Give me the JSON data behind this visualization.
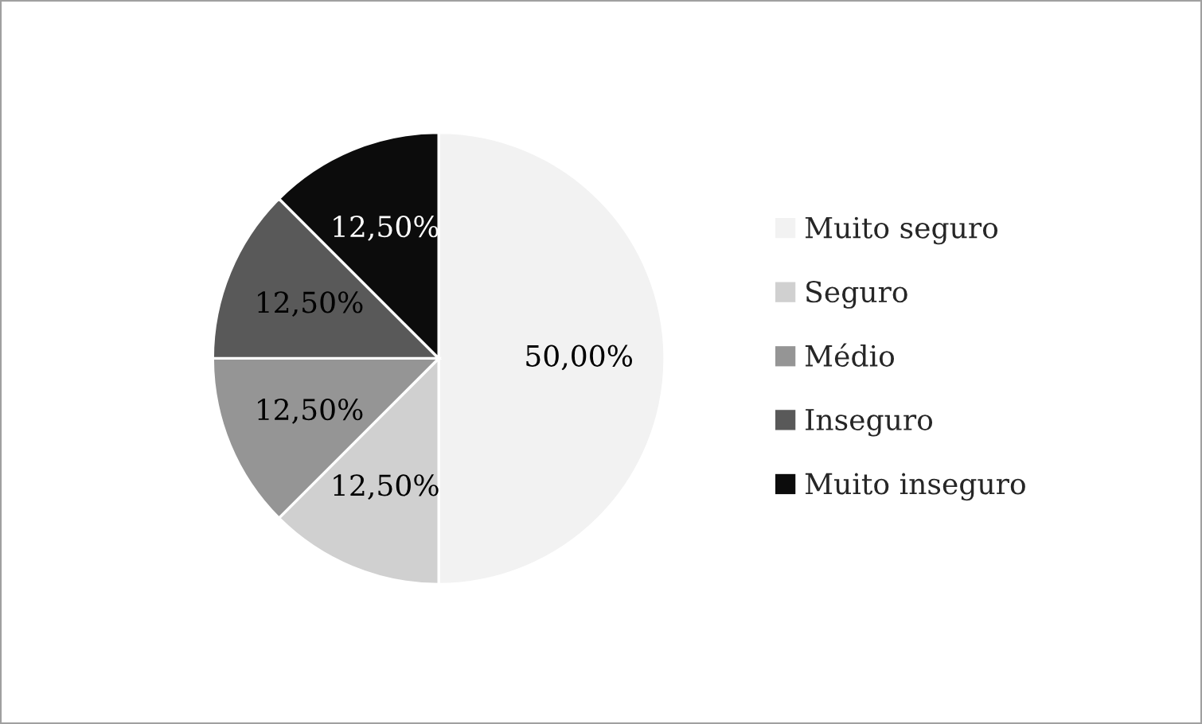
{
  "chart_data": {
    "type": "pie",
    "categories": [
      "Muito seguro",
      "Seguro",
      "Médio",
      "Inseguro",
      "Muito inseguro"
    ],
    "values": [
      50,
      12.5,
      12.5,
      12.5,
      12.5
    ],
    "value_labels": [
      "50,00%",
      "12,50%",
      "12,50%",
      "12,50%",
      "12,50%"
    ],
    "colors": [
      "#f2f2f2",
      "#d0d0d0",
      "#959595",
      "#595959",
      "#0c0c0c"
    ],
    "legend": "right"
  }
}
